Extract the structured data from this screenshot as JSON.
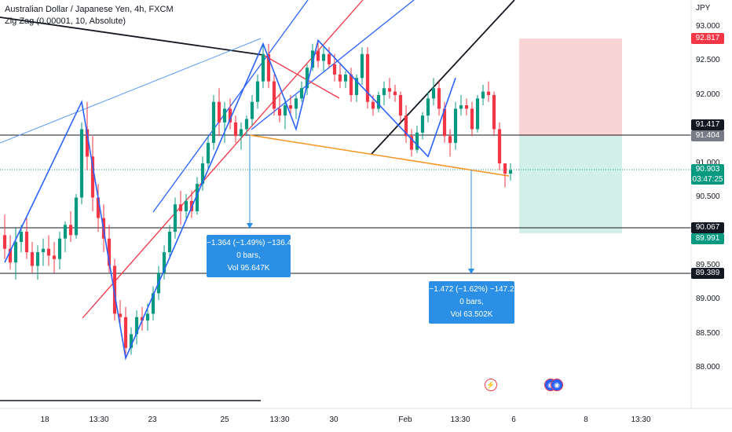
{
  "header": {
    "symbol_title": "Australian Dollar / Japanese Yen, 4h, FXCM",
    "indicator": "Zig Zag (0.00001, 10, Absolute)"
  },
  "axis": {
    "currency": "JPY",
    "y_ticks": [
      "93.000",
      "92.500",
      "92.000",
      "91.000",
      "90.500",
      "89.500",
      "89.000",
      "88.500",
      "88.000"
    ],
    "x_ticks": [
      "18",
      "13:30",
      "23",
      "25",
      "13:30",
      "30",
      "Feb",
      "13:30",
      "6",
      "8",
      "13:30"
    ]
  },
  "price_labels": {
    "stop": "92.817",
    "level_1": "91.417",
    "entry": "91.404",
    "current": "90.903",
    "countdown": "03:47:25",
    "level_2": "90.067",
    "target": "89.991",
    "level_3": "89.389"
  },
  "measure_boxes": [
    {
      "line1": "−1.364 (−1.49%) −136.4",
      "line2": "0 bars,",
      "line3": "Vol 95.647K"
    },
    {
      "line1": "−1.472 (−1.62%) −147.2",
      "line2": "0 bars,",
      "line3": "Vol 63.502K"
    }
  ],
  "events": {
    "flash_icon": "lightning-icon",
    "flag_icon": "flag-icon"
  },
  "chart_data": {
    "type": "candlestick",
    "y_scale": "linear",
    "ylim": [
      87.75,
      93.25
    ],
    "colors": {
      "up": "#089981",
      "down": "#f23645",
      "zigzag": "#2962ff",
      "stop_zone": "#f7c5c7",
      "target_zone": "#c7ebe3",
      "trend": "#f7941d"
    },
    "horizontal_levels": [
      91.417,
      90.067,
      89.389
    ],
    "position": {
      "entry": 91.404,
      "stop": 92.817,
      "target": 89.991
    },
    "candles": [
      {
        "o": 89.95,
        "h": 90.25,
        "l": 89.6,
        "c": 89.75
      },
      {
        "o": 89.75,
        "h": 89.95,
        "l": 89.45,
        "c": 89.55
      },
      {
        "o": 89.55,
        "h": 90.05,
        "l": 89.3,
        "c": 89.85
      },
      {
        "o": 89.85,
        "h": 90.1,
        "l": 89.7,
        "c": 90.0
      },
      {
        "o": 90.0,
        "h": 90.2,
        "l": 89.6,
        "c": 89.7
      },
      {
        "o": 89.7,
        "h": 89.85,
        "l": 89.4,
        "c": 89.5
      },
      {
        "o": 89.5,
        "h": 89.8,
        "l": 89.3,
        "c": 89.7
      },
      {
        "o": 89.7,
        "h": 89.9,
        "l": 89.5,
        "c": 89.75
      },
      {
        "o": 89.75,
        "h": 89.95,
        "l": 89.5,
        "c": 89.65
      },
      {
        "o": 89.65,
        "h": 89.85,
        "l": 89.4,
        "c": 89.6
      },
      {
        "o": 89.6,
        "h": 90.0,
        "l": 89.45,
        "c": 89.9
      },
      {
        "o": 89.9,
        "h": 90.15,
        "l": 89.7,
        "c": 90.1
      },
      {
        "o": 90.1,
        "h": 90.3,
        "l": 89.85,
        "c": 89.95
      },
      {
        "o": 89.95,
        "h": 90.55,
        "l": 89.9,
        "c": 90.5
      },
      {
        "o": 90.5,
        "h": 91.6,
        "l": 90.4,
        "c": 91.5
      },
      {
        "o": 91.5,
        "h": 91.9,
        "l": 90.9,
        "c": 91.1
      },
      {
        "o": 91.1,
        "h": 91.4,
        "l": 90.3,
        "c": 90.5
      },
      {
        "o": 90.5,
        "h": 90.7,
        "l": 90.0,
        "c": 90.2
      },
      {
        "o": 90.2,
        "h": 90.4,
        "l": 89.7,
        "c": 89.9
      },
      {
        "o": 89.9,
        "h": 90.1,
        "l": 89.4,
        "c": 89.5
      },
      {
        "o": 89.5,
        "h": 89.6,
        "l": 88.7,
        "c": 88.8
      },
      {
        "o": 88.8,
        "h": 89.0,
        "l": 88.6,
        "c": 88.75
      },
      {
        "o": 88.75,
        "h": 88.9,
        "l": 88.15,
        "c": 88.3
      },
      {
        "o": 88.3,
        "h": 88.6,
        "l": 88.2,
        "c": 88.5
      },
      {
        "o": 88.5,
        "h": 88.85,
        "l": 88.35,
        "c": 88.75
      },
      {
        "o": 88.75,
        "h": 88.9,
        "l": 88.55,
        "c": 88.7
      },
      {
        "o": 88.7,
        "h": 88.95,
        "l": 88.55,
        "c": 88.8
      },
      {
        "o": 88.8,
        "h": 89.2,
        "l": 88.7,
        "c": 89.1
      },
      {
        "o": 89.1,
        "h": 89.5,
        "l": 89.0,
        "c": 89.4
      },
      {
        "o": 89.4,
        "h": 89.8,
        "l": 89.3,
        "c": 89.7
      },
      {
        "o": 89.7,
        "h": 90.1,
        "l": 89.6,
        "c": 90.0
      },
      {
        "o": 90.0,
        "h": 90.5,
        "l": 89.9,
        "c": 90.4
      },
      {
        "o": 90.4,
        "h": 90.6,
        "l": 90.1,
        "c": 90.3
      },
      {
        "o": 90.3,
        "h": 90.55,
        "l": 90.2,
        "c": 90.45
      },
      {
        "o": 90.45,
        "h": 90.6,
        "l": 90.2,
        "c": 90.3
      },
      {
        "o": 90.3,
        "h": 90.8,
        "l": 90.25,
        "c": 90.7
      },
      {
        "o": 90.7,
        "h": 91.1,
        "l": 90.6,
        "c": 91.0
      },
      {
        "o": 91.0,
        "h": 91.4,
        "l": 90.9,
        "c": 91.3
      },
      {
        "o": 91.3,
        "h": 92.0,
        "l": 91.2,
        "c": 91.9
      },
      {
        "o": 91.9,
        "h": 92.1,
        "l": 91.4,
        "c": 91.6
      },
      {
        "o": 91.6,
        "h": 91.9,
        "l": 91.3,
        "c": 91.8
      },
      {
        "o": 91.8,
        "h": 91.95,
        "l": 91.5,
        "c": 91.6
      },
      {
        "o": 91.6,
        "h": 91.7,
        "l": 91.3,
        "c": 91.4
      },
      {
        "o": 91.4,
        "h": 91.6,
        "l": 91.2,
        "c": 91.5
      },
      {
        "o": 91.5,
        "h": 91.7,
        "l": 91.4,
        "c": 91.65
      },
      {
        "o": 91.65,
        "h": 92.0,
        "l": 91.55,
        "c": 91.9
      },
      {
        "o": 91.9,
        "h": 92.3,
        "l": 91.8,
        "c": 92.2
      },
      {
        "o": 92.2,
        "h": 92.75,
        "l": 92.1,
        "c": 92.6
      },
      {
        "o": 92.6,
        "h": 92.75,
        "l": 92.1,
        "c": 92.2
      },
      {
        "o": 92.2,
        "h": 92.3,
        "l": 91.7,
        "c": 91.8
      },
      {
        "o": 91.8,
        "h": 92.0,
        "l": 91.6,
        "c": 91.7
      },
      {
        "o": 91.7,
        "h": 91.95,
        "l": 91.5,
        "c": 91.85
      },
      {
        "o": 91.85,
        "h": 92.0,
        "l": 91.7,
        "c": 91.8
      },
      {
        "o": 91.8,
        "h": 92.0,
        "l": 91.65,
        "c": 91.95
      },
      {
        "o": 91.95,
        "h": 92.2,
        "l": 91.9,
        "c": 92.1
      },
      {
        "o": 92.1,
        "h": 92.45,
        "l": 92.0,
        "c": 92.4
      },
      {
        "o": 92.4,
        "h": 92.75,
        "l": 92.35,
        "c": 92.65
      },
      {
        "o": 92.65,
        "h": 92.8,
        "l": 92.4,
        "c": 92.5
      },
      {
        "o": 92.5,
        "h": 92.7,
        "l": 92.35,
        "c": 92.6
      },
      {
        "o": 92.6,
        "h": 92.7,
        "l": 92.4,
        "c": 92.45
      },
      {
        "o": 92.45,
        "h": 92.6,
        "l": 92.2,
        "c": 92.3
      },
      {
        "o": 92.3,
        "h": 92.45,
        "l": 92.1,
        "c": 92.2
      },
      {
        "o": 92.2,
        "h": 92.35,
        "l": 92.1,
        "c": 92.3
      },
      {
        "o": 92.3,
        "h": 92.4,
        "l": 91.9,
        "c": 92.0
      },
      {
        "o": 92.0,
        "h": 92.3,
        "l": 91.9,
        "c": 92.25
      },
      {
        "o": 92.25,
        "h": 92.7,
        "l": 92.15,
        "c": 92.6
      },
      {
        "o": 92.6,
        "h": 92.7,
        "l": 91.8,
        "c": 91.9
      },
      {
        "o": 91.9,
        "h": 92.0,
        "l": 91.7,
        "c": 91.8
      },
      {
        "o": 91.8,
        "h": 92.05,
        "l": 91.75,
        "c": 92.0
      },
      {
        "o": 92.0,
        "h": 92.2,
        "l": 91.85,
        "c": 92.1
      },
      {
        "o": 92.1,
        "h": 92.25,
        "l": 91.95,
        "c": 92.05
      },
      {
        "o": 92.05,
        "h": 92.15,
        "l": 91.9,
        "c": 92.0
      },
      {
        "o": 92.0,
        "h": 92.05,
        "l": 91.6,
        "c": 91.7
      },
      {
        "o": 91.7,
        "h": 91.85,
        "l": 91.3,
        "c": 91.4
      },
      {
        "o": 91.4,
        "h": 91.5,
        "l": 91.1,
        "c": 91.2
      },
      {
        "o": 91.2,
        "h": 91.55,
        "l": 91.15,
        "c": 91.45
      },
      {
        "o": 91.45,
        "h": 91.75,
        "l": 91.35,
        "c": 91.7
      },
      {
        "o": 91.7,
        "h": 92.05,
        "l": 91.6,
        "c": 91.95
      },
      {
        "o": 91.95,
        "h": 92.25,
        "l": 91.85,
        "c": 92.1
      },
      {
        "o": 92.1,
        "h": 92.2,
        "l": 91.7,
        "c": 91.8
      },
      {
        "o": 91.8,
        "h": 91.9,
        "l": 91.3,
        "c": 91.4
      },
      {
        "o": 91.4,
        "h": 91.5,
        "l": 91.1,
        "c": 91.3
      },
      {
        "o": 91.3,
        "h": 91.9,
        "l": 91.2,
        "c": 91.8
      },
      {
        "o": 91.8,
        "h": 92.0,
        "l": 91.7,
        "c": 91.85
      },
      {
        "o": 91.85,
        "h": 91.95,
        "l": 91.7,
        "c": 91.8
      },
      {
        "o": 91.8,
        "h": 91.9,
        "l": 91.4,
        "c": 91.5
      },
      {
        "o": 91.5,
        "h": 92.0,
        "l": 91.45,
        "c": 91.95
      },
      {
        "o": 91.95,
        "h": 92.15,
        "l": 91.85,
        "c": 92.05
      },
      {
        "o": 92.05,
        "h": 92.2,
        "l": 91.9,
        "c": 92.0
      },
      {
        "o": 92.0,
        "h": 92.05,
        "l": 91.4,
        "c": 91.5
      },
      {
        "o": 91.5,
        "h": 91.6,
        "l": 90.9,
        "c": 91.0
      },
      {
        "o": 91.0,
        "h": 90.95,
        "l": 90.65,
        "c": 90.85
      },
      {
        "o": 90.85,
        "h": 91.0,
        "l": 90.75,
        "c": 90.9
      }
    ],
    "zigzag": [
      {
        "i": 0,
        "v": 89.55
      },
      {
        "i": 14,
        "v": 91.9
      },
      {
        "i": 22,
        "v": 88.15
      },
      {
        "i": 47,
        "v": 92.75
      },
      {
        "i": 53,
        "v": 91.5
      },
      {
        "i": 57,
        "v": 92.8
      },
      {
        "i": 77,
        "v": 91.1
      },
      {
        "i": 82,
        "v": 92.25
      }
    ]
  }
}
